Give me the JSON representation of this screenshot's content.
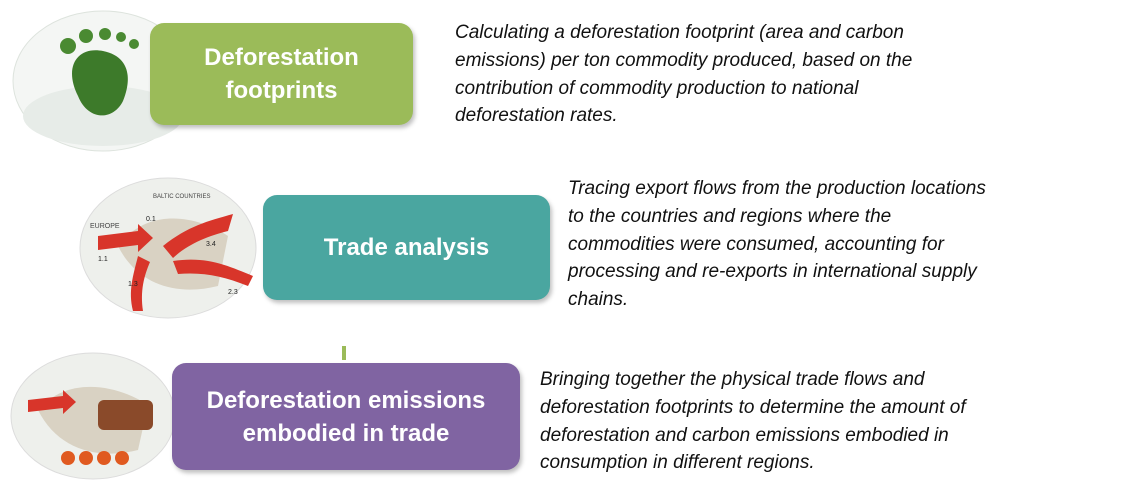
{
  "rows": [
    {
      "title_lines": [
        "Deforestation",
        "footprints"
      ],
      "description_lines": [
        "Calculating a deforestation footprint (area and carbon",
        "emissions) per ton commodity produced, based on the",
        "contribution of commodity production to national",
        "deforestation rates."
      ]
    },
    {
      "title_lines": [
        "Trade analysis"
      ],
      "description_lines": [
        "Tracing export flows from the production locations",
        "to the countries and regions where the",
        "commodities were consumed, accounting for",
        "processing and re-exports in international supply",
        "chains."
      ]
    },
    {
      "title_lines": [
        "Deforestation emissions",
        "embodied in trade"
      ],
      "description_lines": [
        "Bringing together the physical trade flows and",
        "deforestation footprints to determine the amount of",
        "deforestation and carbon emissions embodied in",
        "consumption in different regions."
      ]
    }
  ],
  "map_labels": [
    "BALTIC COUNTRIES",
    "EUROPE",
    "0.1",
    "1.1",
    "1.3",
    "3.4",
    "2.3"
  ]
}
